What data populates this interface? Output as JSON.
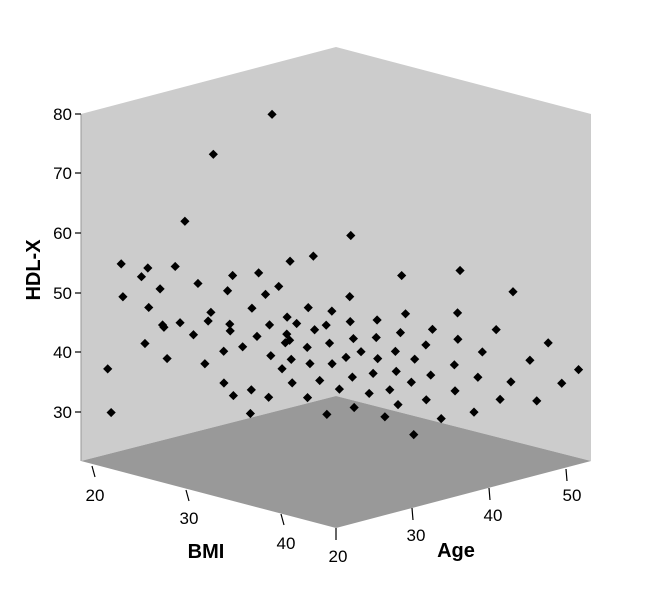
{
  "chart_data": {
    "type": "scatter",
    "title": "",
    "xlabel": "BMI",
    "ylabel": "HDL-X",
    "zlabel": "Age",
    "xlim": [
      18,
      45
    ],
    "ylim": [
      22,
      83
    ],
    "zlim": [
      17,
      55
    ],
    "x_ticks": [
      "20",
      "30",
      "40"
    ],
    "y_ticks": [
      "30",
      "40",
      "50",
      "60",
      "70",
      "80"
    ],
    "z_ticks": [
      "20",
      "30",
      "40",
      "50"
    ],
    "colors": {
      "back_walls": "#cccccc",
      "floor": "#999999",
      "marker": "#000000"
    },
    "marker_shape": "diamond",
    "grid": false,
    "series": [
      {
        "points": [
          {
            "x": 19.6,
            "y": 29.4,
            "z": 20.5
          },
          {
            "x": 19.4,
            "y": 36.7,
            "z": 20.3
          },
          {
            "x": 21.3,
            "y": 40.9,
            "z": 22.8
          },
          {
            "x": 20.5,
            "y": 54.6,
            "z": 20.7
          },
          {
            "x": 20.6,
            "y": 49.1,
            "z": 20.8
          },
          {
            "x": 22.1,
            "y": 43.9,
            "z": 24.1
          },
          {
            "x": 22.5,
            "y": 38.4,
            "z": 24.2
          },
          {
            "x": 21.5,
            "y": 52.4,
            "z": 22.1
          },
          {
            "x": 21.7,
            "y": 47.1,
            "z": 22.8
          },
          {
            "x": 23.3,
            "y": 44.5,
            "z": 24.9
          },
          {
            "x": 22.5,
            "y": 54.4,
            "z": 21.7
          },
          {
            "x": 22.9,
            "y": 44.1,
            "z": 23.3
          },
          {
            "x": 22.9,
            "y": 50.7,
            "z": 22.8
          },
          {
            "x": 24.8,
            "y": 44.8,
            "z": 26.7
          },
          {
            "x": 24.7,
            "y": 37.7,
            "z": 26.4
          },
          {
            "x": 25.0,
            "y": 33.9,
            "z": 28.5
          },
          {
            "x": 23.9,
            "y": 42.4,
            "z": 25.9
          },
          {
            "x": 24.3,
            "y": 62.1,
            "z": 24.3
          },
          {
            "x": 26.4,
            "y": 43.5,
            "z": 27.6
          },
          {
            "x": 26.2,
            "y": 40.2,
            "z": 27.0
          },
          {
            "x": 26.0,
            "y": 32.2,
            "z": 28.5
          },
          {
            "x": 25.5,
            "y": 46.7,
            "z": 26.2
          },
          {
            "x": 24.5,
            "y": 55.1,
            "z": 22.8
          },
          {
            "x": 26.5,
            "y": 52.9,
            "z": 23.3
          },
          {
            "x": 26.9,
            "y": 40.7,
            "z": 28.6
          },
          {
            "x": 27.0,
            "y": 33.2,
            "z": 29.6
          },
          {
            "x": 26.9,
            "y": 29.2,
            "z": 29.6
          },
          {
            "x": 26.6,
            "y": 44.8,
            "z": 27.3
          },
          {
            "x": 27.1,
            "y": 50.9,
            "z": 26.4
          },
          {
            "x": 26.9,
            "y": 74.2,
            "z": 24.8
          },
          {
            "x": 28.0,
            "y": 38.9,
            "z": 30.9
          },
          {
            "x": 27.6,
            "y": 42.4,
            "z": 29.6
          },
          {
            "x": 28.1,
            "y": 32.1,
            "z": 30.5
          },
          {
            "x": 27.8,
            "y": 53.8,
            "z": 26.2
          },
          {
            "x": 28.8,
            "y": 41.1,
            "z": 31.8
          },
          {
            "x": 27.8,
            "y": 47.5,
            "z": 28.7
          },
          {
            "x": 28.7,
            "y": 36.8,
            "z": 31.5
          },
          {
            "x": 28.6,
            "y": 44.6,
            "z": 30.0
          },
          {
            "x": 28.5,
            "y": 49.8,
            "z": 29.6
          },
          {
            "x": 29.2,
            "y": 42.8,
            "z": 31.5
          },
          {
            "x": 29.1,
            "y": 38.3,
            "z": 32.2
          },
          {
            "x": 29.2,
            "y": 34.4,
            "z": 32.2
          },
          {
            "x": 29.4,
            "y": 45.8,
            "z": 31.3
          },
          {
            "x": 29.0,
            "y": 54.1,
            "z": 28.1
          },
          {
            "x": 29.6,
            "y": 31.6,
            "z": 33.7
          },
          {
            "x": 29.5,
            "y": 41.9,
            "z": 31.5
          },
          {
            "x": 30.1,
            "y": 37.6,
            "z": 33.4
          },
          {
            "x": 30.0,
            "y": 44.8,
            "z": 31.8
          },
          {
            "x": 29.9,
            "y": 51.7,
            "z": 29.6
          },
          {
            "x": 30.4,
            "y": 34.6,
            "z": 34.3
          },
          {
            "x": 30.3,
            "y": 40.6,
            "z": 32.8
          },
          {
            "x": 30.9,
            "y": 47.7,
            "z": 32.2
          },
          {
            "x": 30.5,
            "y": 28.7,
            "z": 35.1
          },
          {
            "x": 30.5,
            "y": 81.3,
            "z": 28.0
          },
          {
            "x": 31.0,
            "y": 43.8,
            "z": 32.9
          },
          {
            "x": 31.3,
            "y": 37.6,
            "z": 34.8
          },
          {
            "x": 31.1,
            "y": 56.4,
            "z": 29.6
          },
          {
            "x": 31.6,
            "y": 41.4,
            "z": 34.1
          },
          {
            "x": 31.5,
            "y": 33.2,
            "z": 35.5
          },
          {
            "x": 31.9,
            "y": 44.8,
            "z": 33.3
          },
          {
            "x": 32.0,
            "y": 29.9,
            "z": 36.8
          },
          {
            "x": 32.2,
            "y": 38.8,
            "z": 35.5
          },
          {
            "x": 32.5,
            "y": 47.4,
            "z": 33.3
          },
          {
            "x": 32.3,
            "y": 35.3,
            "z": 36.2
          },
          {
            "x": 32.9,
            "y": 42.2,
            "z": 35.6
          },
          {
            "x": 32.5,
            "y": 57.4,
            "z": 30.9
          },
          {
            "x": 33.1,
            "y": 32.5,
            "z": 37.4
          },
          {
            "x": 33.3,
            "y": 40.0,
            "z": 36.1
          },
          {
            "x": 33.3,
            "y": 45.5,
            "z": 34.7
          },
          {
            "x": 33.6,
            "y": 36.1,
            "z": 37.3
          },
          {
            "x": 33.7,
            "y": 28.4,
            "z": 38.7
          },
          {
            "x": 33.9,
            "y": 50.2,
            "z": 33.9
          },
          {
            "x": 34.0,
            "y": 38.7,
            "z": 37.4
          },
          {
            "x": 34.3,
            "y": 33.2,
            "z": 38.6
          },
          {
            "x": 34.5,
            "y": 42.7,
            "z": 36.6
          },
          {
            "x": 34.6,
            "y": 30.6,
            "z": 39.3
          },
          {
            "x": 34.9,
            "y": 36.5,
            "z": 38.7
          },
          {
            "x": 35.0,
            "y": 46.0,
            "z": 36.1
          },
          {
            "x": 35.2,
            "y": 25.4,
            "z": 40.6
          },
          {
            "x": 35.3,
            "y": 40.2,
            "z": 38.1
          },
          {
            "x": 35.6,
            "y": 34.6,
            "z": 39.8
          },
          {
            "x": 35.4,
            "y": 61.6,
            "z": 32.2
          },
          {
            "x": 36.0,
            "y": 43.7,
            "z": 37.9
          },
          {
            "x": 36.2,
            "y": 31.5,
            "z": 41.0
          },
          {
            "x": 36.2,
            "y": 38.8,
            "z": 39.5
          },
          {
            "x": 36.7,
            "y": 47.2,
            "z": 37.7
          },
          {
            "x": 36.8,
            "y": 28.2,
            "z": 42.2
          },
          {
            "x": 37.0,
            "y": 36.1,
            "z": 40.6
          },
          {
            "x": 37.3,
            "y": 41.6,
            "z": 39.6
          },
          {
            "x": 37.6,
            "y": 54.5,
            "z": 36.1
          },
          {
            "x": 38.1,
            "y": 33.3,
            "z": 42.4
          },
          {
            "x": 38.0,
            "y": 44.5,
            "z": 39.6
          },
          {
            "x": 38.6,
            "y": 38.1,
            "z": 41.7
          },
          {
            "x": 38.8,
            "y": 29.5,
            "z": 44.0
          },
          {
            "x": 39.3,
            "y": 42.8,
            "z": 41.3
          },
          {
            "x": 39.7,
            "y": 35.9,
            "z": 43.4
          },
          {
            "x": 40.0,
            "y": 47.8,
            "z": 40.4
          },
          {
            "x": 40.5,
            "y": 31.9,
            "z": 45.3
          },
          {
            "x": 40.5,
            "y": 40.6,
            "z": 43.0
          },
          {
            "x": 41.0,
            "y": 55.6,
            "z": 39.5
          },
          {
            "x": 41.4,
            "y": 35.1,
            "z": 45.6
          },
          {
            "x": 41.8,
            "y": 44.8,
            "z": 43.2
          },
          {
            "x": 42.5,
            "y": 31.7,
            "z": 47.6
          },
          {
            "x": 43.0,
            "y": 39.2,
            "z": 46.1
          },
          {
            "x": 43.5,
            "y": 51.8,
            "z": 43.3
          },
          {
            "x": 44.0,
            "y": 34.8,
            "z": 49.0
          },
          {
            "x": 44.2,
            "y": 42.3,
            "z": 47.0
          },
          {
            "x": 44.8,
            "y": 37.0,
            "z": 50.2
          }
        ]
      }
    ]
  }
}
